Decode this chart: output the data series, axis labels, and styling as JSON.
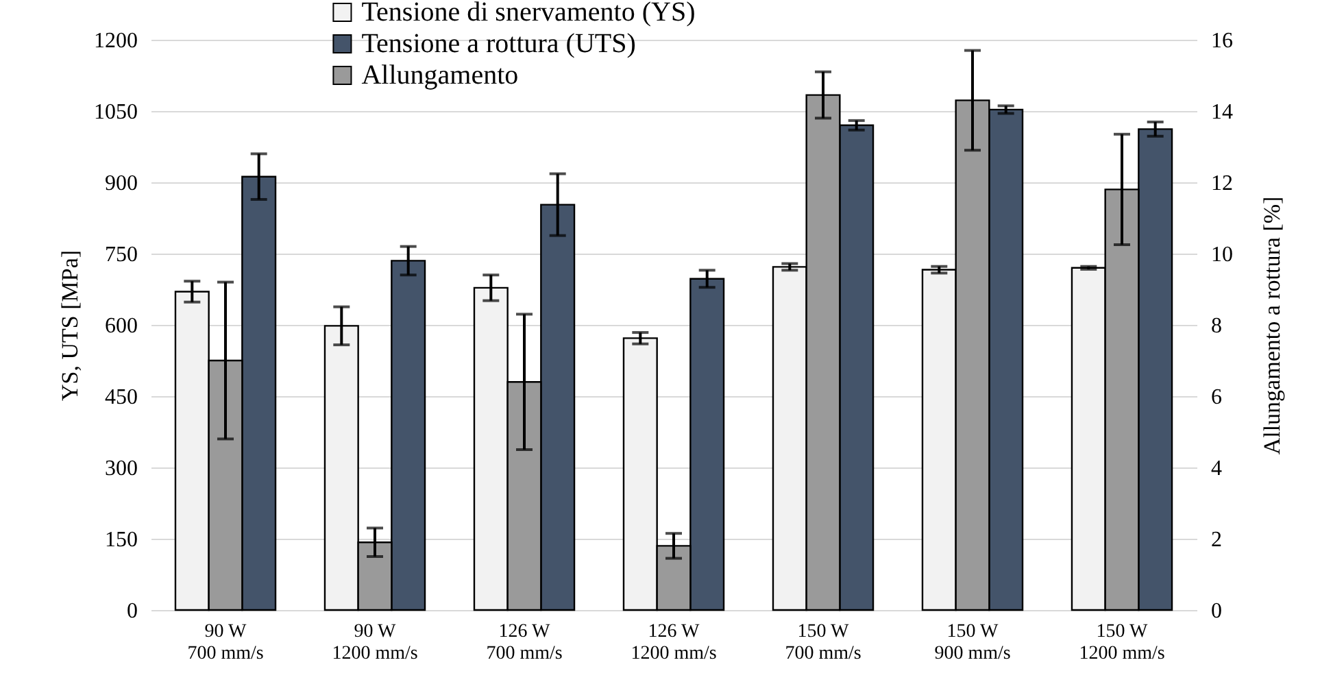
{
  "chart_data": {
    "type": "bar",
    "categories": [
      "90 W\n700 mm/s",
      "90 W\n1200 mm/s",
      "126 W\n700 mm/s",
      "126 W\n1200 mm/s",
      "150 W\n700 mm/s",
      "150 W\n900 mm/s",
      "150 W\n1200 mm/s"
    ],
    "ylabel": "YS, UTS [MPa]",
    "y2label": "Allungamento  a rottura [%]",
    "series": [
      {
        "name": "Tensione di snervamento (YS)",
        "color": "#f2f2f2",
        "values": [
          670,
          598,
          678,
          572,
          722,
          716,
          720
        ],
        "errors": [
          22,
          40,
          27,
          12,
          7,
          7,
          3
        ]
      },
      {
        "name": "Tensione a rottura (UTS)",
        "color": "#44546a",
        "values": [
          912,
          735,
          853,
          697,
          1020,
          1053,
          1012
        ],
        "errors": [
          48,
          30,
          65,
          18,
          10,
          8,
          15
        ]
      },
      {
        "name": "Allungamento",
        "color": "#9a9a9a",
        "axis": "y2",
        "values": [
          7.0,
          1.9,
          6.4,
          1.8,
          14.45,
          14.3,
          11.8
        ],
        "errors": [
          2.2,
          0.4,
          1.9,
          0.35,
          0.65,
          1.4,
          1.55
        ]
      }
    ],
    "ylim": [
      0,
      1200
    ],
    "yticks": [
      0,
      150,
      300,
      450,
      600,
      750,
      900,
      1050,
      1200
    ],
    "y2lim": [
      0,
      16
    ],
    "y2ticks": [
      0,
      2,
      4,
      6,
      8,
      10,
      12,
      14,
      16
    ],
    "grid": "y",
    "legend": "top"
  }
}
